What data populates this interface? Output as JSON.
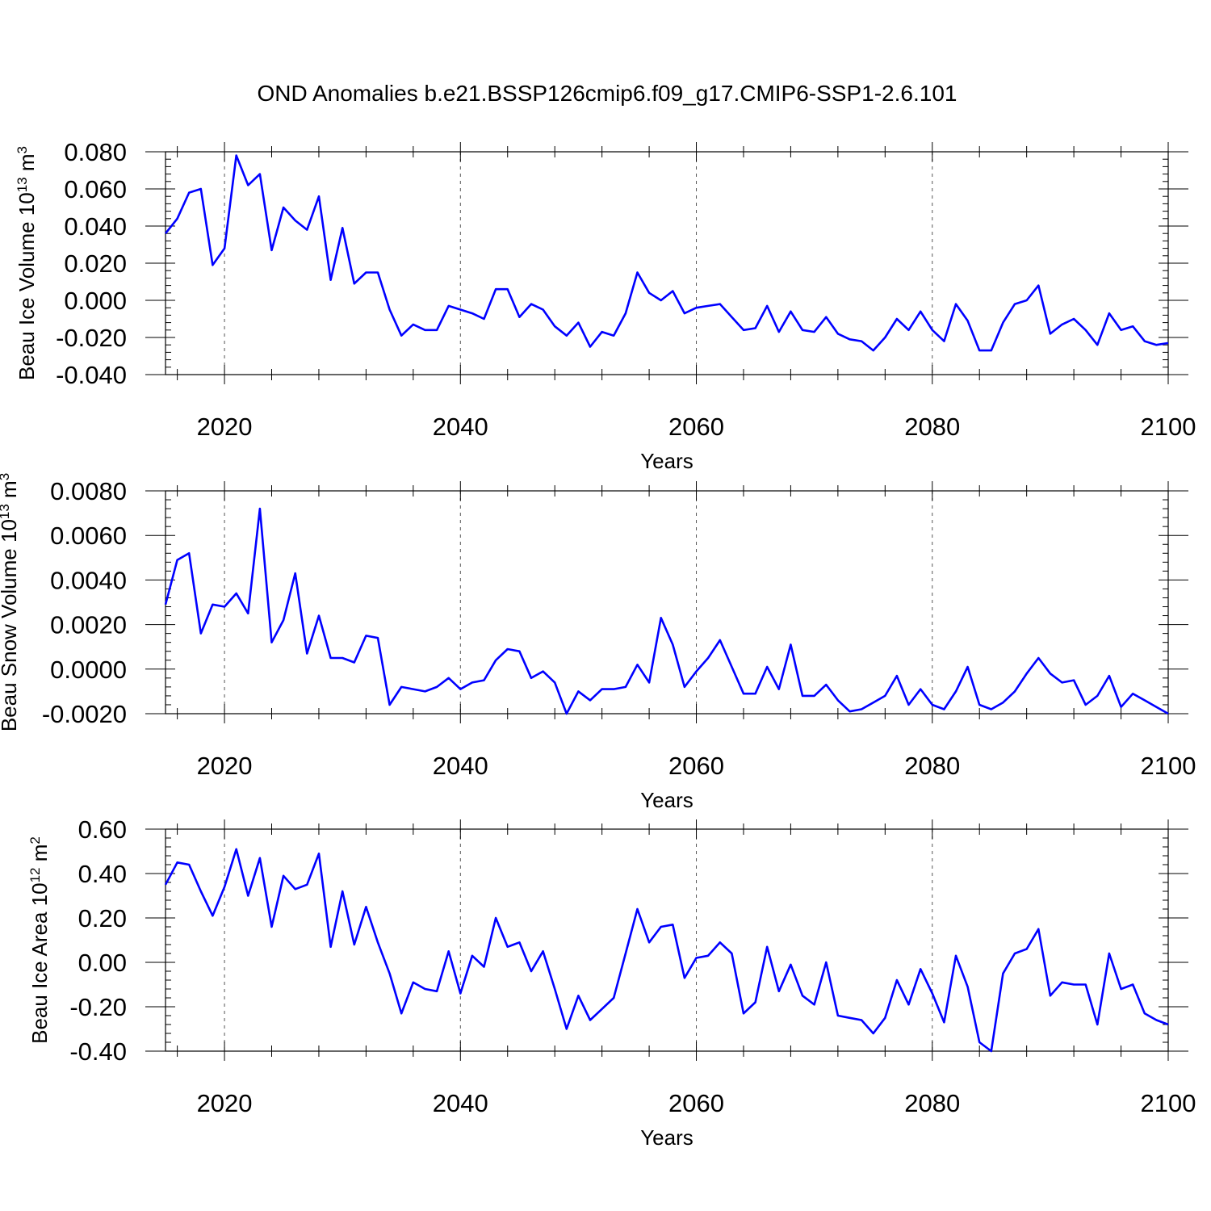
{
  "title": "OND Anomalies b.e21.BSSP126cmip6.f09_g17.CMIP6-SSP1-2.6.101",
  "chart_data": [
    {
      "type": "line",
      "xlabel": "Years",
      "ylabel_parts": [
        "Beau Ice Volume 10",
        "13",
        " m",
        "3"
      ],
      "xlim": [
        2015,
        2100
      ],
      "ylim": [
        -0.04,
        0.08
      ],
      "xticks": [
        2020,
        2040,
        2060,
        2080,
        2100
      ],
      "xtick_labels": [
        "2020",
        "2040",
        "2060",
        "2080",
        "2100"
      ],
      "yticks": [
        -0.04,
        -0.02,
        0.0,
        0.02,
        0.04,
        0.06,
        0.08
      ],
      "ytick_labels": [
        "-0.040",
        "-0.020",
        "0.000",
        "0.020",
        "0.040",
        "0.060",
        "0.080"
      ],
      "grid_x": true,
      "color": "#0000ff",
      "x_start": 2015,
      "values": [
        0.036,
        0.044,
        0.058,
        0.06,
        0.019,
        0.028,
        0.078,
        0.062,
        0.068,
        0.027,
        0.05,
        0.043,
        0.038,
        0.056,
        0.011,
        0.039,
        0.009,
        0.015,
        0.015,
        -0.005,
        -0.019,
        -0.013,
        -0.016,
        -0.016,
        -0.003,
        -0.005,
        -0.007,
        -0.01,
        0.006,
        0.006,
        -0.009,
        -0.002,
        -0.005,
        -0.014,
        -0.019,
        -0.012,
        -0.025,
        -0.017,
        -0.019,
        -0.007,
        0.015,
        0.004,
        0.0,
        0.005,
        -0.007,
        -0.004,
        -0.003,
        -0.002,
        -0.009,
        -0.016,
        -0.015,
        -0.003,
        -0.017,
        -0.006,
        -0.016,
        -0.017,
        -0.009,
        -0.018,
        -0.021,
        -0.022,
        -0.027,
        -0.02,
        -0.01,
        -0.016,
        -0.006,
        -0.016,
        -0.022,
        -0.002,
        -0.011,
        -0.027,
        -0.027,
        -0.012,
        -0.002,
        0.0,
        0.008,
        -0.018,
        -0.013,
        -0.01,
        -0.016,
        -0.024,
        -0.007,
        -0.016,
        -0.014,
        -0.022,
        -0.024,
        -0.023
      ]
    },
    {
      "type": "line",
      "xlabel": "Years",
      "ylabel_parts": [
        "Beau Snow Volume 10",
        "13",
        " m",
        "3"
      ],
      "xlim": [
        2015,
        2100
      ],
      "ylim": [
        -0.002,
        0.008
      ],
      "xticks": [
        2020,
        2040,
        2060,
        2080,
        2100
      ],
      "xtick_labels": [
        "2020",
        "2040",
        "2060",
        "2080",
        "2100"
      ],
      "yticks": [
        -0.002,
        0.0,
        0.002,
        0.004,
        0.006,
        0.008
      ],
      "ytick_labels": [
        "-0.0020",
        "0.0000",
        "0.0020",
        "0.0040",
        "0.0060",
        "0.0080"
      ],
      "grid_x": true,
      "color": "#0000ff",
      "x_start": 2015,
      "values": [
        0.0029,
        0.0049,
        0.0052,
        0.0016,
        0.0029,
        0.0028,
        0.0034,
        0.0025,
        0.0072,
        0.0012,
        0.0022,
        0.0043,
        0.0007,
        0.0024,
        0.0005,
        0.0005,
        0.0003,
        0.0015,
        0.0014,
        -0.0016,
        -0.0008,
        -0.0009,
        -0.001,
        -0.0008,
        -0.0004,
        -0.0009,
        -0.0006,
        -0.0005,
        0.0004,
        0.0009,
        0.0008,
        -0.0004,
        -0.0001,
        -0.0006,
        -0.002,
        -0.001,
        -0.0014,
        -0.0009,
        -0.0009,
        -0.0008,
        0.0002,
        -0.0006,
        0.0023,
        0.0011,
        -0.0008,
        -0.0001,
        0.0005,
        0.0013,
        0.0001,
        -0.0011,
        -0.0011,
        0.0001,
        -0.0009,
        0.0011,
        -0.0012,
        -0.0012,
        -0.0007,
        -0.0014,
        -0.0019,
        -0.0018,
        -0.0015,
        -0.0012,
        -0.0003,
        -0.0016,
        -0.0009,
        -0.0016,
        -0.0018,
        -0.001,
        0.0001,
        -0.0016,
        -0.0018,
        -0.0015,
        -0.001,
        -0.0002,
        0.0005,
        -0.0002,
        -0.0006,
        -0.0005,
        -0.0016,
        -0.0012,
        -0.0003,
        -0.0017,
        -0.0011,
        -0.0014,
        -0.0017,
        -0.002
      ]
    },
    {
      "type": "line",
      "xlabel": "Years",
      "ylabel_parts": [
        "Beau Ice Area 10",
        "12",
        " m",
        "2"
      ],
      "xlim": [
        2015,
        2100
      ],
      "ylim": [
        -0.4,
        0.6
      ],
      "xticks": [
        2020,
        2040,
        2060,
        2080,
        2100
      ],
      "xtick_labels": [
        "2020",
        "2040",
        "2060",
        "2080",
        "2100"
      ],
      "yticks": [
        -0.4,
        -0.2,
        0.0,
        0.2,
        0.4,
        0.6
      ],
      "ytick_labels": [
        "-0.40",
        "-0.20",
        "0.00",
        "0.20",
        "0.40",
        "0.60"
      ],
      "grid_x": true,
      "color": "#0000ff",
      "x_start": 2015,
      "values": [
        0.35,
        0.45,
        0.44,
        0.32,
        0.21,
        0.34,
        0.51,
        0.3,
        0.47,
        0.16,
        0.39,
        0.33,
        0.35,
        0.49,
        0.07,
        0.32,
        0.08,
        0.25,
        0.09,
        -0.05,
        -0.23,
        -0.09,
        -0.12,
        -0.13,
        0.05,
        -0.14,
        0.03,
        -0.02,
        0.2,
        0.07,
        0.09,
        -0.04,
        0.05,
        -0.12,
        -0.3,
        -0.15,
        -0.26,
        -0.21,
        -0.16,
        0.04,
        0.24,
        0.09,
        0.16,
        0.17,
        -0.07,
        0.02,
        0.03,
        0.09,
        0.04,
        -0.23,
        -0.18,
        0.07,
        -0.13,
        -0.01,
        -0.15,
        -0.19,
        0.0,
        -0.24,
        -0.25,
        -0.26,
        -0.32,
        -0.25,
        -0.08,
        -0.19,
        -0.03,
        -0.14,
        -0.27,
        0.03,
        -0.11,
        -0.36,
        -0.4,
        -0.05,
        0.04,
        0.06,
        0.15,
        -0.15,
        -0.09,
        -0.1,
        -0.1,
        -0.28,
        0.04,
        -0.12,
        -0.1,
        -0.23,
        -0.26,
        -0.28
      ]
    }
  ]
}
